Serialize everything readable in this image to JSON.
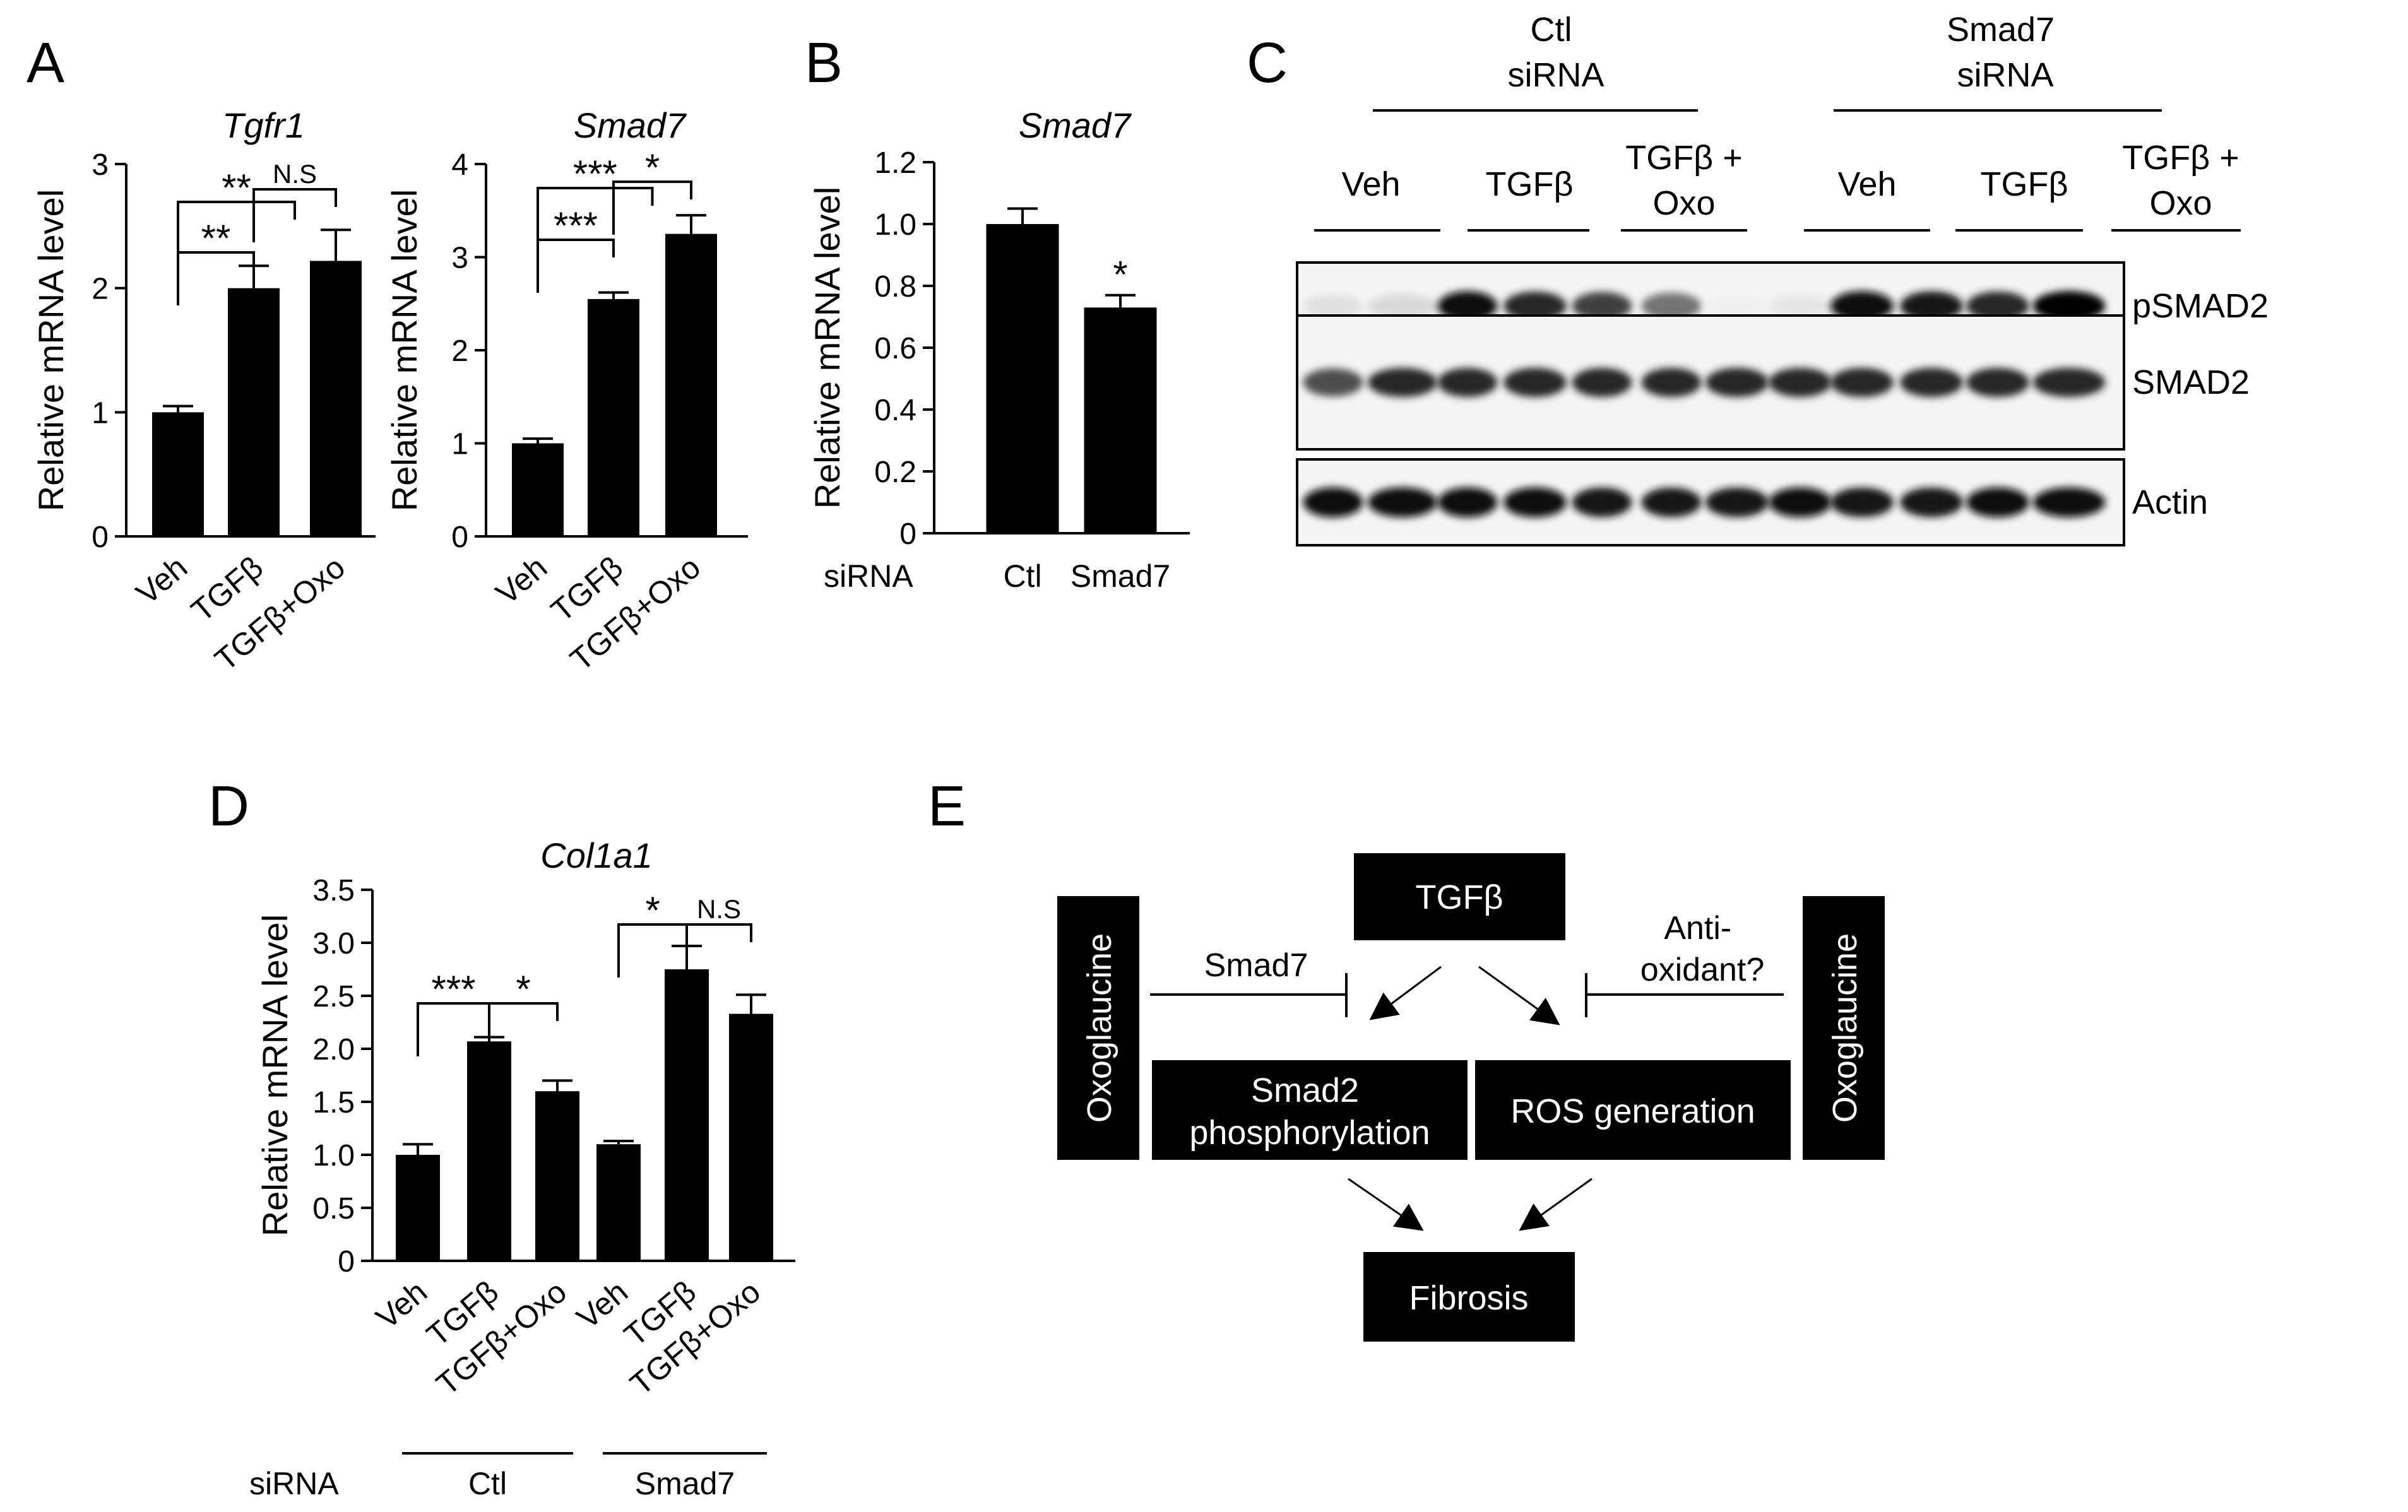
{
  "colors": {
    "bar": "#000000",
    "background": "#ffffff",
    "box_fill": "#000000",
    "box_text": "#ffffff"
  },
  "panels": {
    "A": "A",
    "B": "B",
    "C": "C",
    "D": "D",
    "E": "E"
  },
  "chart_data": [
    {
      "id": "A1",
      "type": "bar",
      "title": "Tgfr1",
      "ylabel": "Relative mRNA level",
      "categories": [
        "Veh",
        "TGFβ",
        "TGFβ+Oxo"
      ],
      "values": [
        1.0,
        2.0,
        2.22
      ],
      "errors": [
        0.05,
        0.18,
        0.25
      ],
      "ylim": [
        0,
        3
      ],
      "yticks": [
        "0",
        "1",
        "2",
        "3"
      ],
      "significance": [
        {
          "from": 0,
          "to": 1,
          "label": "**"
        },
        {
          "from": 0,
          "to": 1.5,
          "label": "**"
        },
        {
          "from": 1,
          "to": 2,
          "label": "N.S"
        }
      ]
    },
    {
      "id": "A2",
      "type": "bar",
      "title": "Smad7",
      "ylabel": "Relative mRNA level",
      "categories": [
        "Veh",
        "TGFβ",
        "TGFβ+Oxo"
      ],
      "values": [
        1.0,
        2.55,
        3.25
      ],
      "errors": [
        0.05,
        0.07,
        0.2
      ],
      "ylim": [
        0,
        4
      ],
      "yticks": [
        "0",
        "1",
        "2",
        "3",
        "4"
      ],
      "significance": [
        {
          "from": 0,
          "to": 1,
          "label": "***"
        },
        {
          "from": 0,
          "to": 1.5,
          "label": "***"
        },
        {
          "from": 1,
          "to": 2,
          "label": "*"
        }
      ]
    },
    {
      "id": "B",
      "type": "bar",
      "title": "Smad7",
      "ylabel": "Relative mRNA level",
      "group_label": "siRNA",
      "categories": [
        "Ctl",
        "Smad7"
      ],
      "values": [
        1.0,
        0.73
      ],
      "errors": [
        0.05,
        0.04
      ],
      "ylim": [
        0,
        1.2
      ],
      "yticks": [
        "0",
        "0.2",
        "0.4",
        "0.6",
        "0.8",
        "1.0",
        "1.2"
      ],
      "annotations": [
        {
          "index": 1,
          "label": "*"
        }
      ]
    },
    {
      "id": "D",
      "type": "bar",
      "title": "Col1a1",
      "ylabel": "Relative mRNA level",
      "group_label": "siRNA",
      "categories": [
        "Veh",
        "TGFβ",
        "TGFβ+Oxo",
        "Veh",
        "TGFβ",
        "TGFβ+Oxo"
      ],
      "groups": [
        {
          "name": "Ctl",
          "start": 0,
          "end": 2
        },
        {
          "name": "Smad7",
          "start": 3,
          "end": 5
        }
      ],
      "values": [
        1.0,
        2.07,
        1.6,
        1.1,
        2.75,
        2.33
      ],
      "errors": [
        0.1,
        0.04,
        0.1,
        0.03,
        0.22,
        0.18
      ],
      "ylim": [
        0,
        3.5
      ],
      "yticks": [
        "0",
        "0.5",
        "1.0",
        "1.5",
        "2.0",
        "2.5",
        "3.0",
        "3.5"
      ],
      "significance": [
        {
          "from": 0,
          "to": 1,
          "label": "***"
        },
        {
          "from": 1,
          "to": 2,
          "label": "*"
        },
        {
          "from": 3,
          "to": 4,
          "label": "*"
        },
        {
          "from": 4,
          "to": 5,
          "label": "N.S"
        }
      ]
    }
  ],
  "blot": {
    "groups": [
      "Ctl\nsiRNA",
      "Smad7\nsiRNA"
    ],
    "conditions": [
      "Veh",
      "TGFβ",
      "TGFβ +\nOxo",
      "Veh",
      "TGFβ",
      "TGFβ +\nOxo"
    ],
    "rows": [
      {
        "label": "pSMAD2",
        "intensity": [
          0.12,
          0.15,
          0.95,
          0.85,
          0.75,
          0.55,
          0.06,
          0.1,
          0.95,
          0.9,
          0.85,
          1.0
        ]
      },
      {
        "label": "SMAD2",
        "intensity": [
          0.7,
          0.85,
          0.85,
          0.85,
          0.85,
          0.85,
          0.85,
          0.85,
          0.85,
          0.85,
          0.85,
          0.85
        ]
      },
      {
        "label": "Actin",
        "intensity": [
          0.95,
          0.95,
          0.95,
          0.95,
          0.9,
          0.9,
          0.9,
          0.95,
          0.9,
          0.9,
          0.95,
          0.95
        ]
      }
    ]
  },
  "schematic": {
    "top": "TGFβ",
    "left_box": "Smad2\nphosphorylation",
    "right_box": "ROS generation",
    "bottom": "Fibrosis",
    "side": "Oxoglaucine",
    "left_inhibitor": "Smad7",
    "right_inhibitor": "Anti-\noxidant?"
  }
}
